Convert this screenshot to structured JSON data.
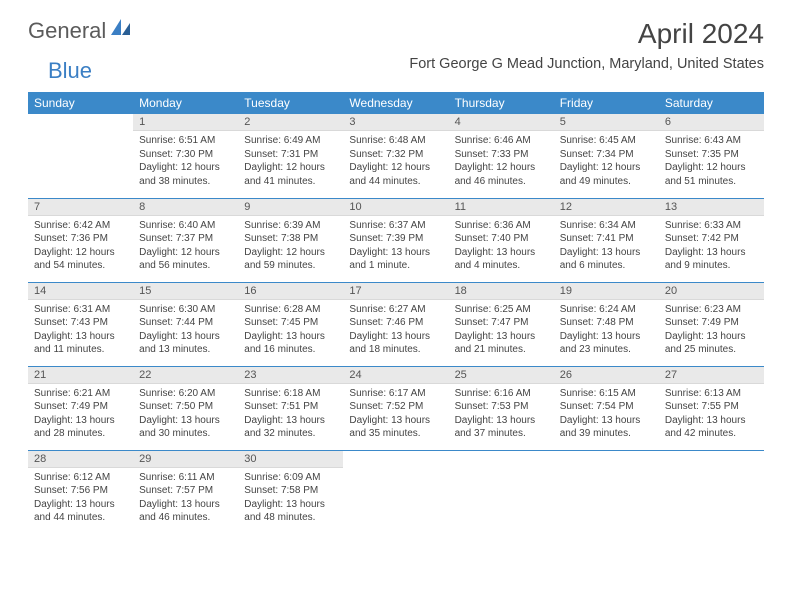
{
  "logo": {
    "text1": "General",
    "text2": "Blue"
  },
  "title": "April 2024",
  "location": "Fort George G Mead Junction, Maryland, United States",
  "colors": {
    "header_bg": "#3b89c9",
    "header_text": "#ffffff",
    "daynum_bg": "#e9e9e9",
    "divider": "#3b89c9",
    "body_text": "#444444"
  },
  "fonts": {
    "title_pt": 28,
    "location_pt": 14.5,
    "th_pt": 12,
    "daynum_pt": 11,
    "body_pt": 10
  },
  "weekdays": [
    "Sunday",
    "Monday",
    "Tuesday",
    "Wednesday",
    "Thursday",
    "Friday",
    "Saturday"
  ],
  "weeks": [
    [
      null,
      {
        "n": "1",
        "sunrise": "Sunrise: 6:51 AM",
        "sunset": "Sunset: 7:30 PM",
        "day1": "Daylight: 12 hours",
        "day2": "and 38 minutes."
      },
      {
        "n": "2",
        "sunrise": "Sunrise: 6:49 AM",
        "sunset": "Sunset: 7:31 PM",
        "day1": "Daylight: 12 hours",
        "day2": "and 41 minutes."
      },
      {
        "n": "3",
        "sunrise": "Sunrise: 6:48 AM",
        "sunset": "Sunset: 7:32 PM",
        "day1": "Daylight: 12 hours",
        "day2": "and 44 minutes."
      },
      {
        "n": "4",
        "sunrise": "Sunrise: 6:46 AM",
        "sunset": "Sunset: 7:33 PM",
        "day1": "Daylight: 12 hours",
        "day2": "and 46 minutes."
      },
      {
        "n": "5",
        "sunrise": "Sunrise: 6:45 AM",
        "sunset": "Sunset: 7:34 PM",
        "day1": "Daylight: 12 hours",
        "day2": "and 49 minutes."
      },
      {
        "n": "6",
        "sunrise": "Sunrise: 6:43 AM",
        "sunset": "Sunset: 7:35 PM",
        "day1": "Daylight: 12 hours",
        "day2": "and 51 minutes."
      }
    ],
    [
      {
        "n": "7",
        "sunrise": "Sunrise: 6:42 AM",
        "sunset": "Sunset: 7:36 PM",
        "day1": "Daylight: 12 hours",
        "day2": "and 54 minutes."
      },
      {
        "n": "8",
        "sunrise": "Sunrise: 6:40 AM",
        "sunset": "Sunset: 7:37 PM",
        "day1": "Daylight: 12 hours",
        "day2": "and 56 minutes."
      },
      {
        "n": "9",
        "sunrise": "Sunrise: 6:39 AM",
        "sunset": "Sunset: 7:38 PM",
        "day1": "Daylight: 12 hours",
        "day2": "and 59 minutes."
      },
      {
        "n": "10",
        "sunrise": "Sunrise: 6:37 AM",
        "sunset": "Sunset: 7:39 PM",
        "day1": "Daylight: 13 hours",
        "day2": "and 1 minute."
      },
      {
        "n": "11",
        "sunrise": "Sunrise: 6:36 AM",
        "sunset": "Sunset: 7:40 PM",
        "day1": "Daylight: 13 hours",
        "day2": "and 4 minutes."
      },
      {
        "n": "12",
        "sunrise": "Sunrise: 6:34 AM",
        "sunset": "Sunset: 7:41 PM",
        "day1": "Daylight: 13 hours",
        "day2": "and 6 minutes."
      },
      {
        "n": "13",
        "sunrise": "Sunrise: 6:33 AM",
        "sunset": "Sunset: 7:42 PM",
        "day1": "Daylight: 13 hours",
        "day2": "and 9 minutes."
      }
    ],
    [
      {
        "n": "14",
        "sunrise": "Sunrise: 6:31 AM",
        "sunset": "Sunset: 7:43 PM",
        "day1": "Daylight: 13 hours",
        "day2": "and 11 minutes."
      },
      {
        "n": "15",
        "sunrise": "Sunrise: 6:30 AM",
        "sunset": "Sunset: 7:44 PM",
        "day1": "Daylight: 13 hours",
        "day2": "and 13 minutes."
      },
      {
        "n": "16",
        "sunrise": "Sunrise: 6:28 AM",
        "sunset": "Sunset: 7:45 PM",
        "day1": "Daylight: 13 hours",
        "day2": "and 16 minutes."
      },
      {
        "n": "17",
        "sunrise": "Sunrise: 6:27 AM",
        "sunset": "Sunset: 7:46 PM",
        "day1": "Daylight: 13 hours",
        "day2": "and 18 minutes."
      },
      {
        "n": "18",
        "sunrise": "Sunrise: 6:25 AM",
        "sunset": "Sunset: 7:47 PM",
        "day1": "Daylight: 13 hours",
        "day2": "and 21 minutes."
      },
      {
        "n": "19",
        "sunrise": "Sunrise: 6:24 AM",
        "sunset": "Sunset: 7:48 PM",
        "day1": "Daylight: 13 hours",
        "day2": "and 23 minutes."
      },
      {
        "n": "20",
        "sunrise": "Sunrise: 6:23 AM",
        "sunset": "Sunset: 7:49 PM",
        "day1": "Daylight: 13 hours",
        "day2": "and 25 minutes."
      }
    ],
    [
      {
        "n": "21",
        "sunrise": "Sunrise: 6:21 AM",
        "sunset": "Sunset: 7:49 PM",
        "day1": "Daylight: 13 hours",
        "day2": "and 28 minutes."
      },
      {
        "n": "22",
        "sunrise": "Sunrise: 6:20 AM",
        "sunset": "Sunset: 7:50 PM",
        "day1": "Daylight: 13 hours",
        "day2": "and 30 minutes."
      },
      {
        "n": "23",
        "sunrise": "Sunrise: 6:18 AM",
        "sunset": "Sunset: 7:51 PM",
        "day1": "Daylight: 13 hours",
        "day2": "and 32 minutes."
      },
      {
        "n": "24",
        "sunrise": "Sunrise: 6:17 AM",
        "sunset": "Sunset: 7:52 PM",
        "day1": "Daylight: 13 hours",
        "day2": "and 35 minutes."
      },
      {
        "n": "25",
        "sunrise": "Sunrise: 6:16 AM",
        "sunset": "Sunset: 7:53 PM",
        "day1": "Daylight: 13 hours",
        "day2": "and 37 minutes."
      },
      {
        "n": "26",
        "sunrise": "Sunrise: 6:15 AM",
        "sunset": "Sunset: 7:54 PM",
        "day1": "Daylight: 13 hours",
        "day2": "and 39 minutes."
      },
      {
        "n": "27",
        "sunrise": "Sunrise: 6:13 AM",
        "sunset": "Sunset: 7:55 PM",
        "day1": "Daylight: 13 hours",
        "day2": "and 42 minutes."
      }
    ],
    [
      {
        "n": "28",
        "sunrise": "Sunrise: 6:12 AM",
        "sunset": "Sunset: 7:56 PM",
        "day1": "Daylight: 13 hours",
        "day2": "and 44 minutes."
      },
      {
        "n": "29",
        "sunrise": "Sunrise: 6:11 AM",
        "sunset": "Sunset: 7:57 PM",
        "day1": "Daylight: 13 hours",
        "day2": "and 46 minutes."
      },
      {
        "n": "30",
        "sunrise": "Sunrise: 6:09 AM",
        "sunset": "Sunset: 7:58 PM",
        "day1": "Daylight: 13 hours",
        "day2": "and 48 minutes."
      },
      null,
      null,
      null,
      null
    ]
  ]
}
